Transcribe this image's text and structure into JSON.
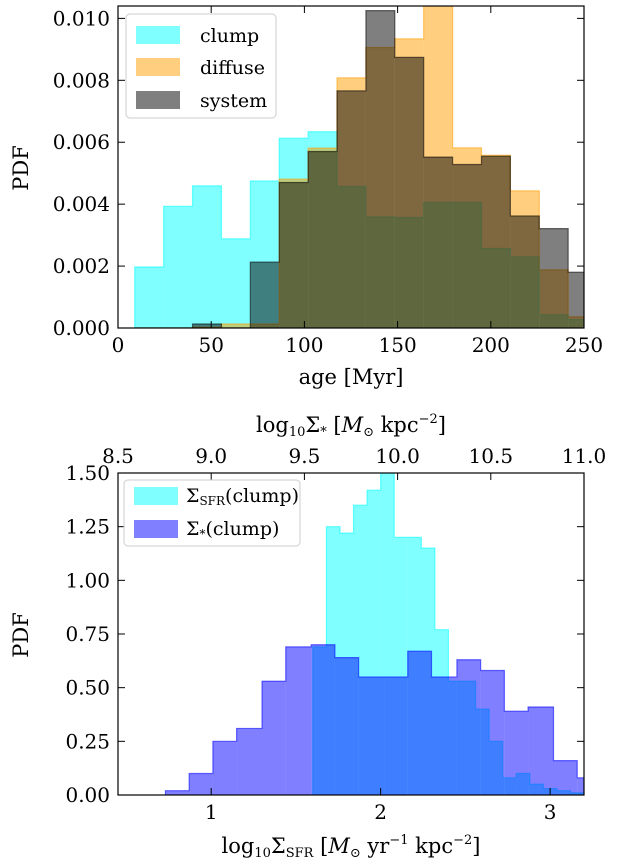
{
  "chart_data": [
    {
      "type": "histogram",
      "xlabel": "age [Myr]",
      "ylabel": "PDF",
      "xlim": [
        0,
        250
      ],
      "ylim": [
        0,
        0.0104
      ],
      "xticks": [
        "0",
        "50",
        "100",
        "150",
        "200",
        "250"
      ],
      "xtick_values": [
        0,
        50,
        100,
        150,
        200,
        250
      ],
      "yticks": [
        "0.000",
        "0.002",
        "0.004",
        "0.006",
        "0.008",
        "0.010"
      ],
      "ytick_values": [
        0,
        0.002,
        0.004,
        0.006,
        0.008,
        0.01
      ],
      "legend_position": "top-left",
      "bin_edges": [
        9,
        24.5,
        40,
        55.5,
        71,
        86.5,
        102,
        117.5,
        133,
        148.5,
        164,
        179.5,
        195,
        210.5,
        226,
        241.5,
        257
      ],
      "series": [
        {
          "name": "clump",
          "color": "#00ffff",
          "opacity": 0.5,
          "values": [
            0.00197,
            0.00393,
            0.00459,
            0.00288,
            0.00475,
            0.00613,
            0.00634,
            0.00457,
            0.00359,
            0.00357,
            0.00406,
            0.00406,
            0.00257,
            0.0023,
            0.00043,
            0.00027
          ]
        },
        {
          "name": "diffuse",
          "color": "#ff9f00",
          "opacity": 0.5,
          "values": [
            0,
            0,
            3e-05,
            0.00013,
            0.00013,
            0.00481,
            0.00581,
            0.00808,
            0.00906,
            0.00934,
            0.01044,
            0.00582,
            0.00558,
            0.00443,
            0.00188,
            0.00036
          ]
        },
        {
          "name": "system",
          "color": "#000000",
          "opacity": 0.5,
          "values": [
            0,
            0,
            0.00013,
            0,
            0.00213,
            0.0047,
            0.0057,
            0.00766,
            0.01025,
            0.00874,
            0.00552,
            0.00528,
            0.00555,
            0.00362,
            0.00321,
            0.0018
          ]
        }
      ]
    },
    {
      "type": "histogram",
      "xlabel": "log10 ΣSFR [M⊙ yr−1 kpc−2]",
      "top_xlabel": "log10 Σ* [M⊙ kpc−2]",
      "ylabel": "PDF",
      "xlim": [
        0.45,
        3.2
      ],
      "ylim": [
        0,
        1.5
      ],
      "xticks": [
        "1",
        "2",
        "3"
      ],
      "xtick_values": [
        1,
        2,
        3
      ],
      "top_xticks": [
        "8.5",
        "9.0",
        "9.5",
        "10.0",
        "10.5",
        "11.0"
      ],
      "yticks": [
        "0.00",
        "0.25",
        "0.50",
        "0.75",
        "1.00",
        "1.25",
        "1.50"
      ],
      "ytick_values": [
        0,
        0.25,
        0.5,
        0.75,
        1.0,
        1.25,
        1.5
      ],
      "legend_position": "top-left",
      "series": [
        {
          "name": "ΣSFR(clump)",
          "color": "#00ffff",
          "opacity": 0.5,
          "bin_edges": [
            1.6,
            1.68,
            1.76,
            1.84,
            1.92,
            2.0,
            2.08,
            2.16,
            2.24,
            2.32,
            2.4,
            2.48,
            2.56,
            2.64,
            2.72,
            2.8,
            2.88,
            2.96,
            3.04,
            3.12,
            3.2
          ],
          "values": [
            0.69,
            1.25,
            1.22,
            1.35,
            1.42,
            1.5,
            1.2,
            1.2,
            1.15,
            0.77,
            0.53,
            0.53,
            0.4,
            0.25,
            0.08,
            0.1,
            0.05,
            0.03,
            0.02,
            0.01
          ]
        },
        {
          "name": "Σ*(clump)",
          "color": "#0000ff",
          "opacity": 0.5,
          "bin_edges": [
            0.73,
            0.87,
            1.01,
            1.15,
            1.3,
            1.44,
            1.59,
            1.73,
            1.87,
            2.02,
            2.16,
            2.3,
            2.45,
            2.59,
            2.73,
            2.87,
            3.02,
            3.16,
            3.2
          ],
          "values": [
            0.02,
            0.1,
            0.25,
            0.31,
            0.53,
            0.69,
            0.7,
            0.64,
            0.55,
            0.55,
            0.67,
            0.55,
            0.63,
            0.58,
            0.39,
            0.41,
            0.16,
            0.08
          ]
        }
      ]
    }
  ]
}
